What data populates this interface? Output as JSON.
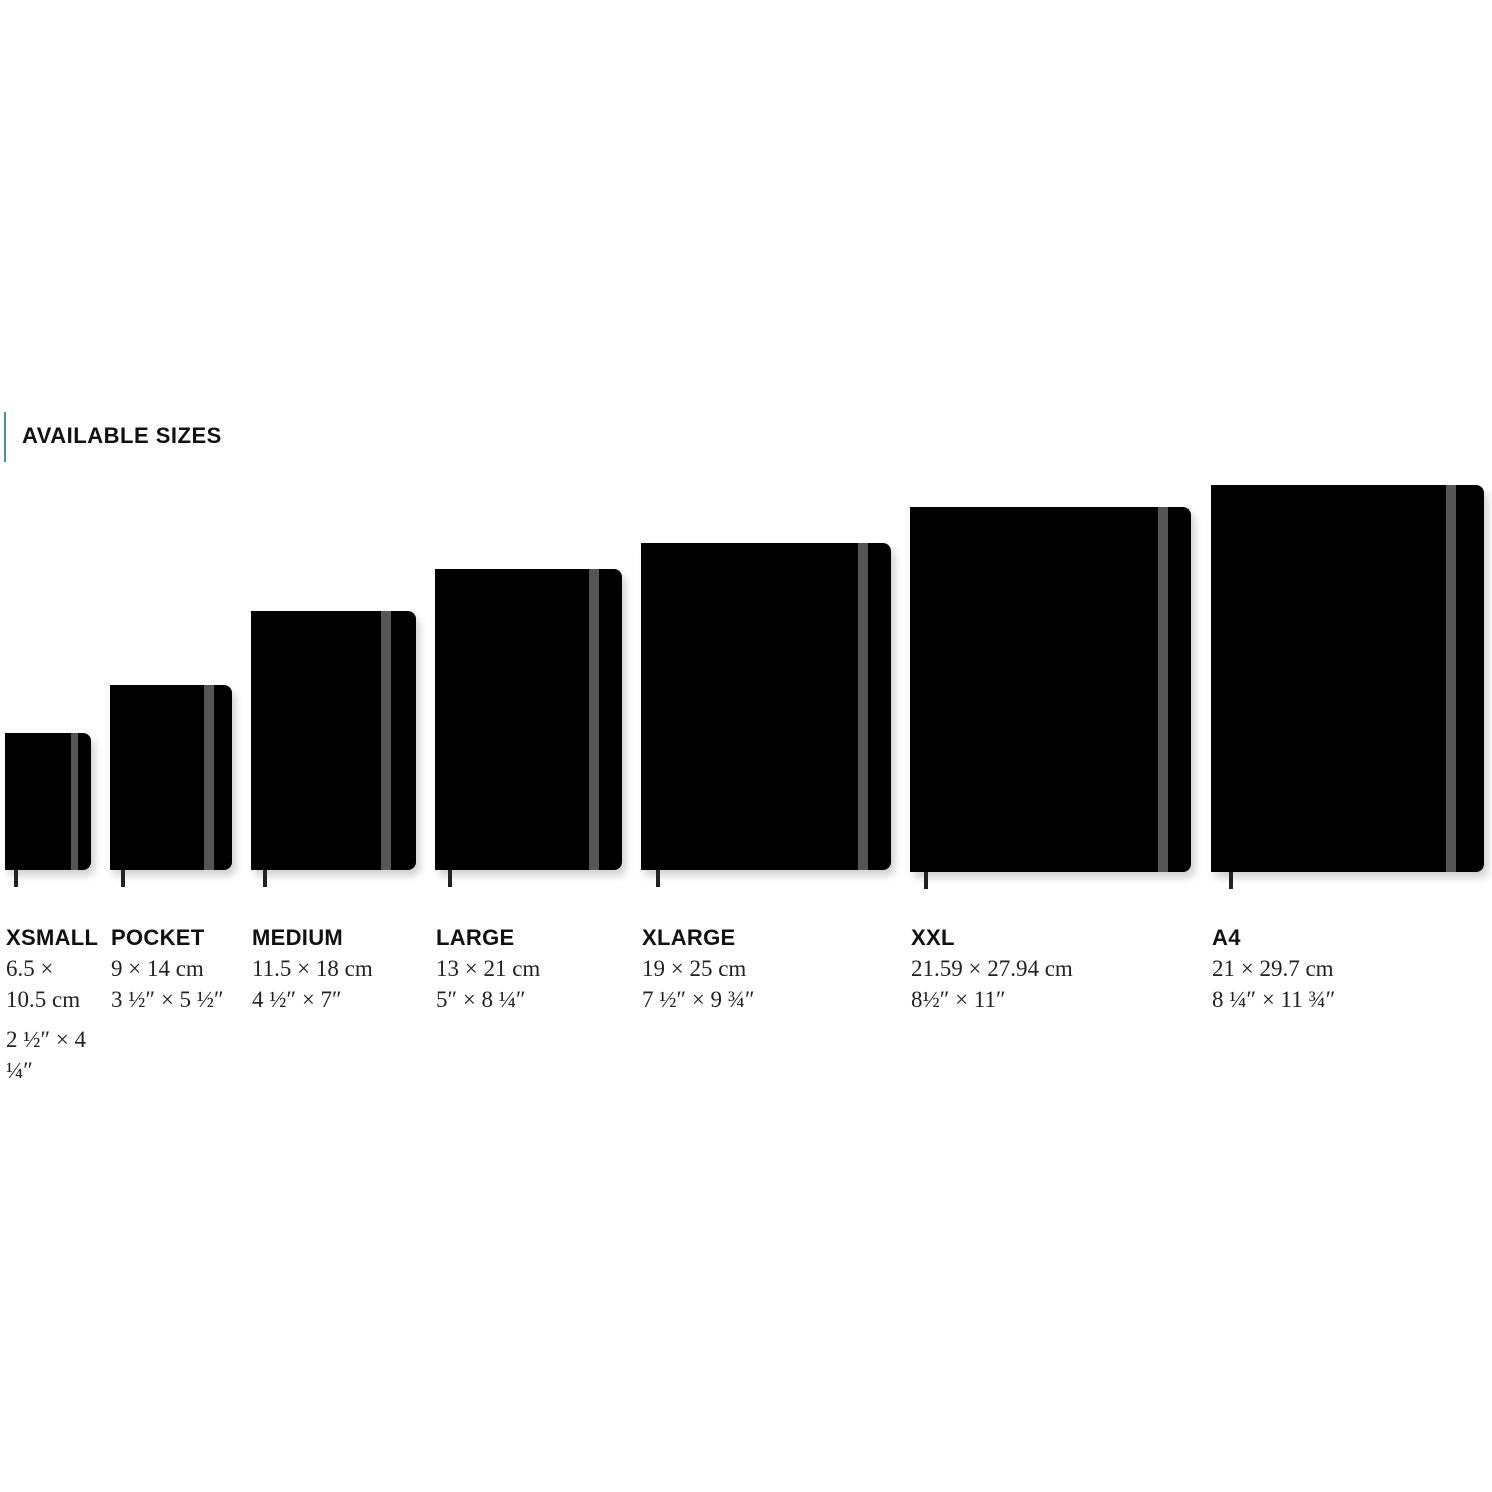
{
  "heading": "AVAILABLE SIZES",
  "colors": {
    "accent_bar": "#4a8f9c",
    "notebook": "#000000",
    "elastic_band": "#555555"
  },
  "sizes": [
    {
      "name": "XSMALL",
      "cm": "6.5 × 10.5 cm",
      "inches": "2 ½″ × 4 ¼″"
    },
    {
      "name": "POCKET",
      "cm": "9 × 14 cm",
      "inches": "3 ½″ × 5 ½″"
    },
    {
      "name": "MEDIUM",
      "cm": "11.5 × 18 cm",
      "inches": "4 ½″ × 7″"
    },
    {
      "name": "LARGE",
      "cm": "13 × 21 cm",
      "inches": "5″ × 8 ¼″"
    },
    {
      "name": "XLARGE",
      "cm": "19 × 25 cm",
      "inches": "7 ½″ × 9 ¾″"
    },
    {
      "name": "XXL",
      "cm": "21.59 × 27.94 cm",
      "inches": "8½″ × 11″"
    },
    {
      "name": "A4",
      "cm": "21 × 29.7 cm",
      "inches": "8 ¼″ × 11 ¾″"
    }
  ]
}
